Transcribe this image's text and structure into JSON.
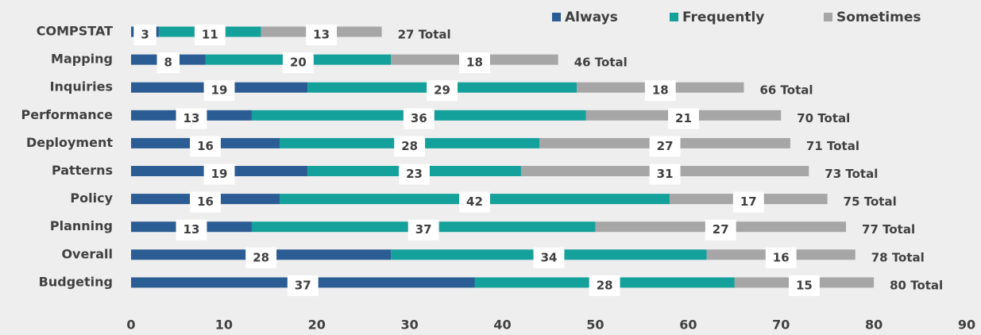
{
  "chart_data": {
    "type": "stacked-bar-horizontal",
    "categories": [
      "COMPSTAT",
      "Mapping",
      "Inquiries",
      "Performance",
      "Deployment",
      "Patterns",
      "Policy",
      "Planning",
      "Overall",
      "Budgeting"
    ],
    "series": [
      {
        "name": "Always",
        "color": "#2b5c93",
        "values": [
          3,
          8,
          19,
          13,
          16,
          19,
          16,
          13,
          28,
          37
        ]
      },
      {
        "name": "Frequently",
        "color": "#14a09b",
        "values": [
          11,
          20,
          29,
          36,
          28,
          23,
          42,
          37,
          34,
          28
        ]
      },
      {
        "name": "Sometimes",
        "color": "#a6a6a6",
        "values": [
          13,
          18,
          18,
          21,
          27,
          31,
          17,
          27,
          16,
          15
        ]
      }
    ],
    "total_labels": [
      "27 Total",
      "46 Total",
      "66 Total",
      "70 Total",
      "71 Total",
      "73 Total",
      "75 Total",
      "77 Total",
      "78 Total",
      "80 Total"
    ],
    "xlim": [
      0,
      90
    ],
    "xticks": [
      0,
      10,
      20,
      30,
      40,
      50,
      60,
      70,
      80,
      90
    ],
    "legend": "top-right",
    "grid": false
  }
}
